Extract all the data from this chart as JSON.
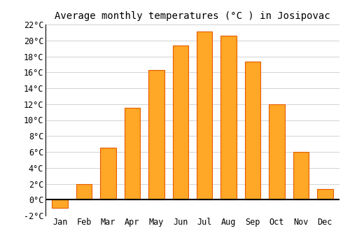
{
  "title": "Average monthly temperatures (°C ) in Josipovac",
  "months": [
    "Jan",
    "Feb",
    "Mar",
    "Apr",
    "May",
    "Jun",
    "Jul",
    "Aug",
    "Sep",
    "Oct",
    "Nov",
    "Dec"
  ],
  "values": [
    -1.0,
    2.0,
    6.5,
    11.5,
    16.3,
    19.4,
    21.1,
    20.6,
    17.3,
    12.0,
    6.0,
    1.3
  ],
  "bar_color": "#FFA726",
  "bar_edge_color": "#E65C00",
  "ylim": [
    -2,
    22
  ],
  "yticks": [
    -2,
    0,
    2,
    4,
    6,
    8,
    10,
    12,
    14,
    16,
    18,
    20,
    22
  ],
  "ytick_labels": [
    "-2°C",
    "0°C",
    "2°C",
    "4°C",
    "6°C",
    "8°C",
    "10°C",
    "12°C",
    "14°C",
    "16°C",
    "18°C",
    "20°C",
    "22°C"
  ],
  "background_color": "#FFFFFF",
  "grid_color": "#CCCCCC",
  "title_fontsize": 10,
  "tick_fontsize": 8.5,
  "zero_line_color": "#000000",
  "spine_color": "#000000"
}
